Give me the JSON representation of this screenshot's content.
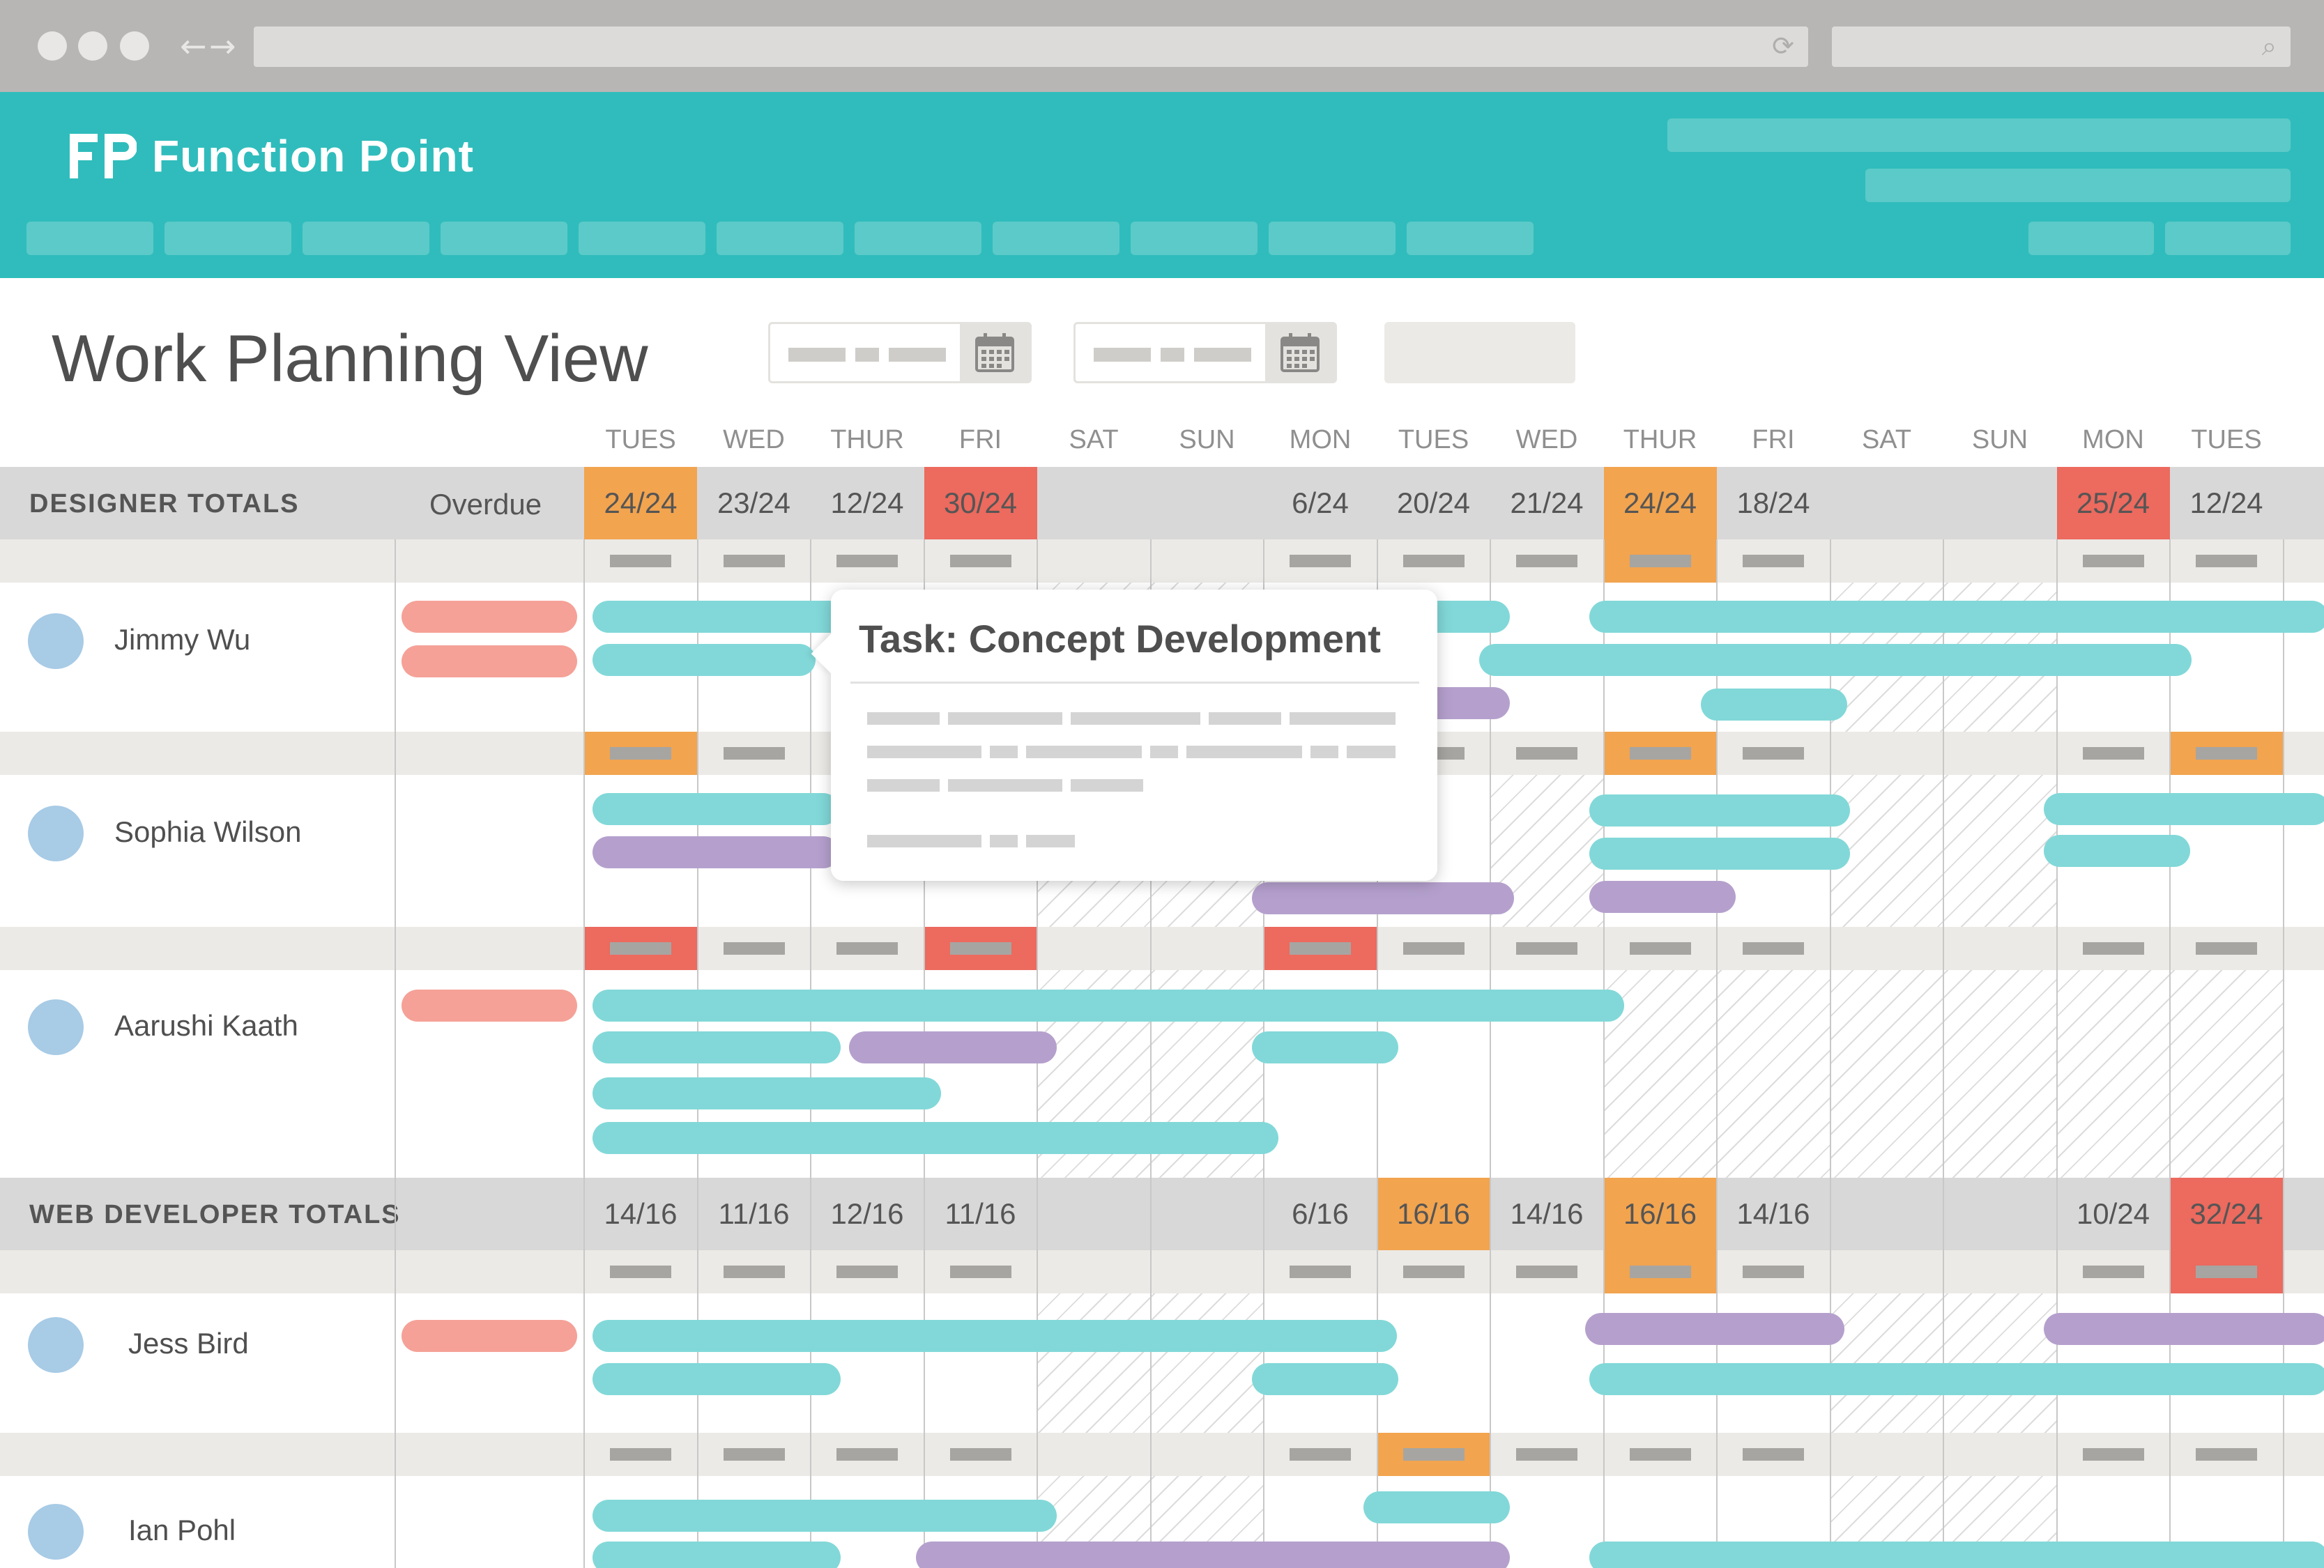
{
  "app": {
    "name": "Function Point",
    "logo_icon": "function-point-logo-icon"
  },
  "page": {
    "title": "Work Planning View"
  },
  "filters": {
    "calendar_icon": "calendar-icon"
  },
  "days": [
    "TUES",
    "WED",
    "THUR",
    "FRI",
    "SAT",
    "SUN",
    "MON",
    "TUES",
    "WED",
    "THUR",
    "FRI",
    "SAT",
    "SUN",
    "MON",
    "TUES"
  ],
  "groups": [
    {
      "title": "DESIGNER TOTALS",
      "overdue_label": "Overdue",
      "totals": [
        "24/24",
        "23/24",
        "12/24",
        "30/24",
        "",
        "",
        "6/24",
        "20/24",
        "21/24",
        "24/24",
        "18/24",
        "",
        "",
        "25/24",
        "12/24"
      ],
      "people": [
        {
          "name": "Jimmy Wu"
        },
        {
          "name": "Sophia Wilson"
        },
        {
          "name": "Aarushi Kaath"
        }
      ]
    },
    {
      "title": "WEB DEVELOPER TOTALS",
      "totals": [
        "14/16",
        "11/16",
        "12/16",
        "11/16",
        "",
        "",
        "6/16",
        "16/16",
        "14/16",
        "16/16",
        "14/16",
        "",
        "",
        "10/24",
        "32/24"
      ],
      "people": [
        {
          "name": "Jess Bird"
        },
        {
          "name": "Ian Pohl"
        }
      ]
    }
  ],
  "tooltip": {
    "title": "Task: Concept Development"
  },
  "colors": {
    "header": "#30bcbc",
    "task_teal": "#82d8d8",
    "task_purple": "#b5a0cd",
    "overdue_red": "#f5a197",
    "capacity_full": "#f2a44f",
    "capacity_over": "#ec6a5e"
  }
}
